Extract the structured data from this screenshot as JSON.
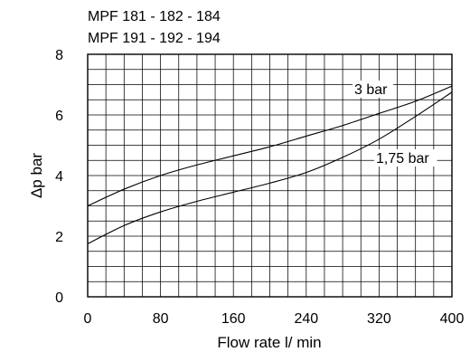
{
  "chart_data": {
    "type": "line",
    "title_lines": [
      "MPF 181 - 182 - 184",
      "MPF 191 - 192 - 194"
    ],
    "xlabel": "Flow rate l/ min",
    "ylabel": "Δp bar",
    "xlim": [
      0,
      400
    ],
    "ylim": [
      0,
      8
    ],
    "x_ticks": [
      "0",
      "80",
      "160",
      "240",
      "320",
      "400"
    ],
    "y_ticks": [
      "0",
      "2",
      "4",
      "6",
      "8"
    ],
    "grid": true,
    "grid_minor_x_step": 20,
    "grid_minor_y_step": 0.5,
    "series": [
      {
        "name": "3 bar",
        "x": [
          0,
          40,
          80,
          120,
          160,
          200,
          240,
          280,
          320,
          360,
          400
        ],
        "y": [
          3.0,
          3.55,
          4.0,
          4.35,
          4.65,
          4.95,
          5.3,
          5.65,
          6.05,
          6.45,
          6.95
        ]
      },
      {
        "name": "1,75 bar",
        "x": [
          0,
          40,
          80,
          120,
          160,
          200,
          240,
          280,
          320,
          360,
          400
        ],
        "y": [
          1.75,
          2.35,
          2.8,
          3.15,
          3.45,
          3.75,
          4.1,
          4.6,
          5.2,
          5.95,
          6.75
        ]
      }
    ]
  }
}
